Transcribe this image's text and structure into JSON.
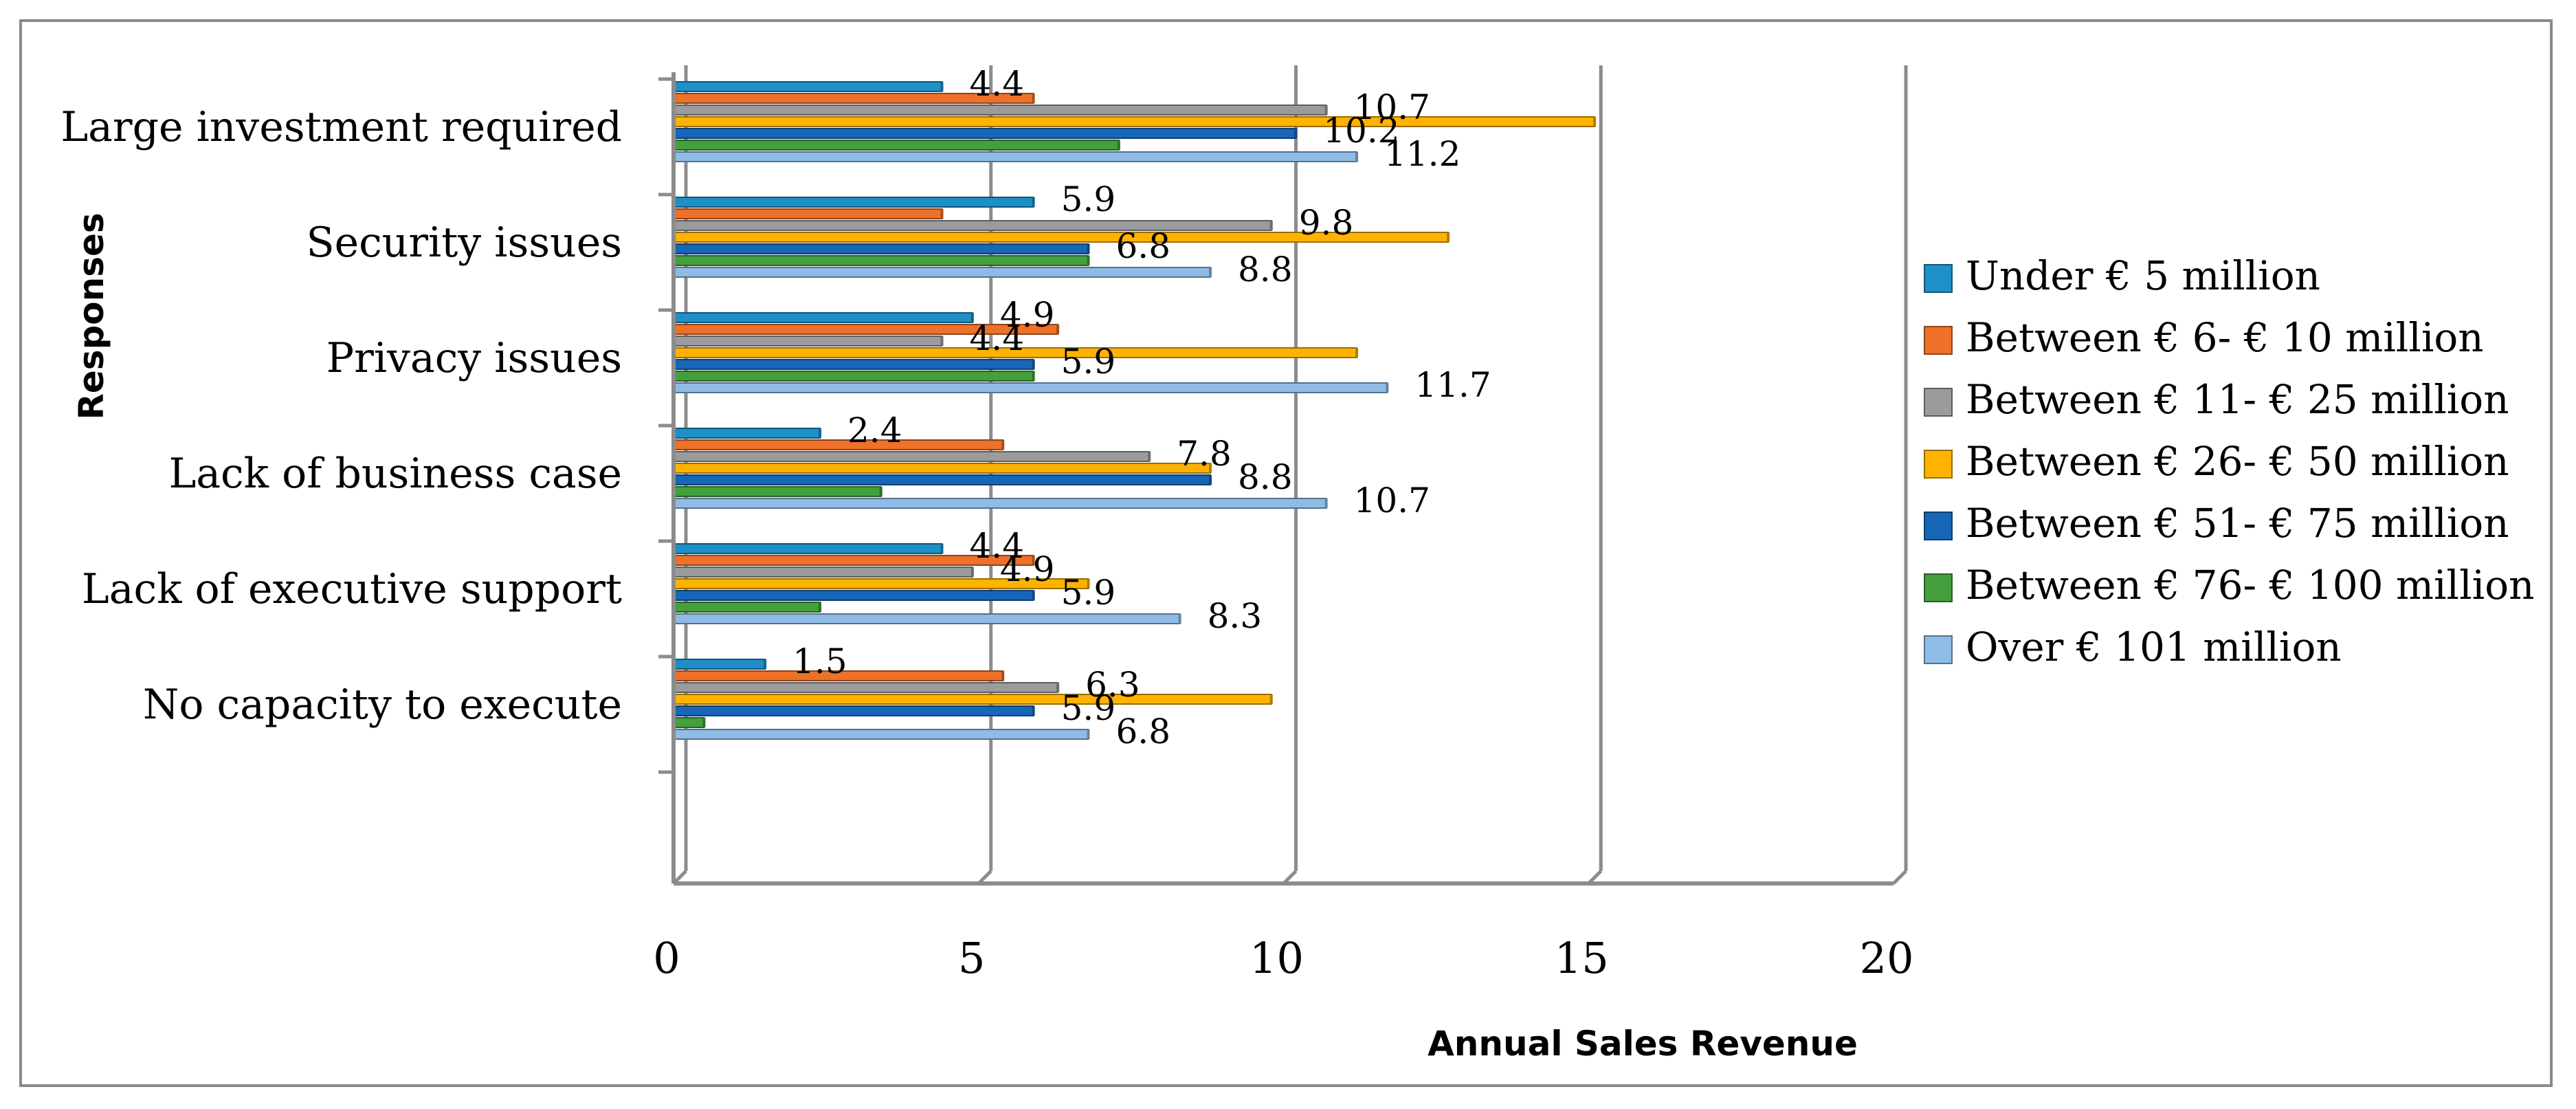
{
  "chart_data": {
    "type": "bar",
    "orientation": "horizontal",
    "xlabel": "Annual Sales Revenue",
    "ylabel": "Responses",
    "xlim": [
      0,
      20
    ],
    "xticks": [
      "0",
      "5",
      "10",
      "15",
      "20"
    ],
    "grid": true,
    "legend_position": "right",
    "categories": [
      "Large investment required",
      "Security issues",
      "Privacy issues",
      "Lack of business case",
      "Lack of executive support",
      "No capacity to execute"
    ],
    "series": [
      {
        "name": "Under € 5 million",
        "color": "#1f8fc8",
        "values": [
          4.4,
          5.9,
          4.9,
          2.4,
          4.4,
          1.5
        ]
      },
      {
        "name": "Between € 6- € 10 million",
        "color": "#ed7128",
        "values": [
          5.9,
          4.4,
          6.3,
          5.4,
          5.9,
          5.4
        ]
      },
      {
        "name": "Between € 11- € 25 million",
        "color": "#9b9b9b",
        "values": [
          10.7,
          9.8,
          4.4,
          7.8,
          4.9,
          6.3
        ]
      },
      {
        "name": "Between € 26- € 50 million",
        "color": "#ffb300",
        "values": [
          15.1,
          12.7,
          11.2,
          8.8,
          6.8,
          9.8
        ]
      },
      {
        "name": "Between € 51- € 75 million",
        "color": "#1766b8",
        "values": [
          10.2,
          6.8,
          5.9,
          8.8,
          5.9,
          5.9
        ]
      },
      {
        "name": "Between € 76- € 100 million",
        "color": "#43a03c",
        "values": [
          7.3,
          6.8,
          5.9,
          3.4,
          2.4,
          0.5
        ]
      },
      {
        "name": "Over € 101 million",
        "color": "#8fbce6",
        "values": [
          11.2,
          8.8,
          11.7,
          10.7,
          8.3,
          6.8
        ]
      }
    ],
    "data_labels": [
      {
        "category": 0,
        "series": 0,
        "text": "4.4"
      },
      {
        "category": 0,
        "series": 2,
        "text": "10.7"
      },
      {
        "category": 0,
        "series": 4,
        "text": "10.2"
      },
      {
        "category": 0,
        "series": 6,
        "text": "11.2"
      },
      {
        "category": 1,
        "series": 0,
        "text": "5.9"
      },
      {
        "category": 1,
        "series": 2,
        "text": "9.8"
      },
      {
        "category": 1,
        "series": 4,
        "text": "6.8"
      },
      {
        "category": 1,
        "series": 6,
        "text": "8.8"
      },
      {
        "category": 2,
        "series": 0,
        "text": "4.9"
      },
      {
        "category": 2,
        "series": 2,
        "text": "4.4"
      },
      {
        "category": 2,
        "series": 4,
        "text": "5.9"
      },
      {
        "category": 2,
        "series": 6,
        "text": "11.7"
      },
      {
        "category": 3,
        "series": 0,
        "text": "2.4"
      },
      {
        "category": 3,
        "series": 2,
        "text": "7.8"
      },
      {
        "category": 3,
        "series": 4,
        "text": "8.8"
      },
      {
        "category": 3,
        "series": 6,
        "text": "10.7"
      },
      {
        "category": 4,
        "series": 0,
        "text": "4.4"
      },
      {
        "category": 4,
        "series": 2,
        "text": "4.9"
      },
      {
        "category": 4,
        "series": 4,
        "text": "5.9"
      },
      {
        "category": 4,
        "series": 6,
        "text": "8.3"
      },
      {
        "category": 5,
        "series": 0,
        "text": "1.5"
      },
      {
        "category": 5,
        "series": 2,
        "text": "6.3"
      },
      {
        "category": 5,
        "series": 4,
        "text": "5.9"
      },
      {
        "category": 5,
        "series": 6,
        "text": "6.8"
      }
    ]
  }
}
